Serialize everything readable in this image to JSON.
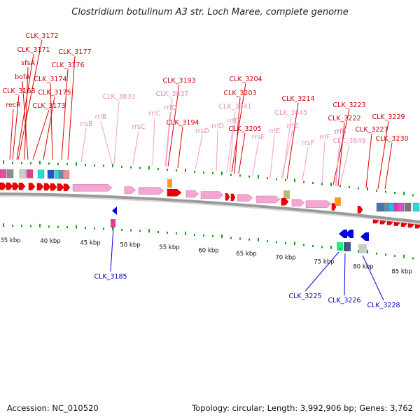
{
  "title": "Clostridium botulinum A3 str. Loch Maree, complete genome",
  "footer": {
    "accession": "Accession: NC_010520",
    "topology": "Topology: circular; Length: 3,992,906 bp; Genes: 3,762"
  },
  "colors": {
    "red": "#ee0000",
    "pink": "#f4a6d2",
    "blue": "#0000dd",
    "backbone": "#888888",
    "tick": "#1a9c1a"
  },
  "kbp_ticks": [
    {
      "label": "35 kbp"
    },
    {
      "label": "40 kbp"
    },
    {
      "label": "45 kbp"
    },
    {
      "label": "50 kbp"
    },
    {
      "label": "55 kbp"
    },
    {
      "label": "60 kbp"
    },
    {
      "label": "65 kbp"
    },
    {
      "label": "70 kbp"
    },
    {
      "label": "75 kbp"
    },
    {
      "label": "80 kbp"
    },
    {
      "label": "85 kbp"
    }
  ],
  "labels_outer": [
    {
      "text": "CLK_3172",
      "color": "red"
    },
    {
      "text": "CLK_3171",
      "color": "red"
    },
    {
      "text": "CLK_3177",
      "color": "red"
    },
    {
      "text": "sfsA",
      "color": "red"
    },
    {
      "text": "CLK_3176",
      "color": "red"
    },
    {
      "text": "bofA",
      "color": "red"
    },
    {
      "text": "CLK_3174",
      "color": "red"
    },
    {
      "text": "CLK_3168",
      "color": "red"
    },
    {
      "text": "CLK_3175",
      "color": "red"
    },
    {
      "text": "recR",
      "color": "red"
    },
    {
      "text": "CLK_3173",
      "color": "red"
    },
    {
      "text": "CLK_3193",
      "color": "red"
    },
    {
      "text": "CLK_3204",
      "color": "red"
    },
    {
      "text": "CLK_3833",
      "color": "pink"
    },
    {
      "text": "CLK_3837",
      "color": "pink"
    },
    {
      "text": "CLK_3203",
      "color": "red"
    },
    {
      "text": "CLK_3214",
      "color": "red"
    },
    {
      "text": "rrfC",
      "color": "pink"
    },
    {
      "text": "rrlB",
      "color": "pink"
    },
    {
      "text": "CLK_3841",
      "color": "pink"
    },
    {
      "text": "CLK_3223",
      "color": "red"
    },
    {
      "text": "rrlC",
      "color": "pink"
    },
    {
      "text": "rrfD",
      "color": "pink"
    },
    {
      "text": "CLK_3845",
      "color": "pink"
    },
    {
      "text": "rrsB",
      "color": "pink"
    },
    {
      "text": "CLK_3222",
      "color": "red"
    },
    {
      "text": "CLK_3229",
      "color": "red"
    },
    {
      "text": "CLK_3194",
      "color": "red"
    },
    {
      "text": "rrfB",
      "color": "pink"
    },
    {
      "text": "rrsC",
      "color": "pink"
    },
    {
      "text": "rrlD",
      "color": "pink"
    },
    {
      "text": "CLK_3205",
      "color": "red"
    },
    {
      "text": "rrfE",
      "color": "pink"
    },
    {
      "text": "rrsD",
      "color": "pink"
    },
    {
      "text": "rrlE",
      "color": "pink"
    },
    {
      "text": "rrfF",
      "color": "pink"
    },
    {
      "text": "CLK_3227",
      "color": "red"
    },
    {
      "text": "rrsE",
      "color": "pink"
    },
    {
      "text": "rrlF",
      "color": "pink"
    },
    {
      "text": "CLK_3849",
      "color": "pink"
    },
    {
      "text": "CLK_3230",
      "color": "red"
    },
    {
      "text": "rrsF",
      "color": "pink"
    }
  ],
  "labels_inner": [
    {
      "text": "CLK_3185",
      "color": "blue"
    },
    {
      "text": "CLK_3225",
      "color": "blue"
    },
    {
      "text": "CLK_3226",
      "color": "blue"
    },
    {
      "text": "CLK_3228",
      "color": "blue"
    }
  ]
}
